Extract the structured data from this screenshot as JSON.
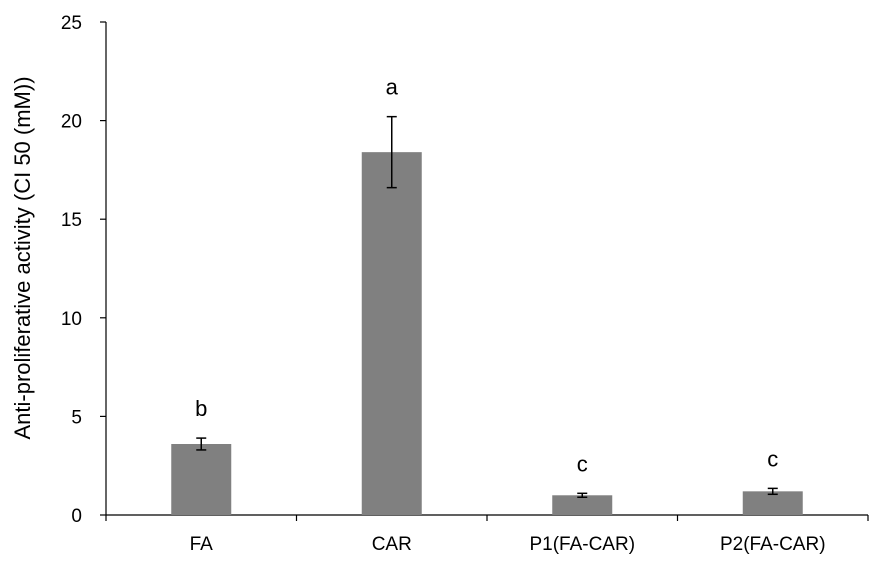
{
  "chart_data": {
    "type": "bar",
    "title": "",
    "xlabel": "",
    "ylabel": "Anti-proliferative activity (CI 50 (mM))",
    "categories": [
      "FA",
      "CAR",
      "P1(FA-CAR)",
      "P2(FA-CAR)"
    ],
    "values": [
      3.6,
      18.4,
      1.0,
      1.2
    ],
    "errors": [
      0.3,
      1.8,
      0.1,
      0.15
    ],
    "significance_labels": [
      "b",
      "a",
      "c",
      "c"
    ],
    "ylim": [
      0,
      25
    ],
    "yticks": [
      0,
      5,
      10,
      15,
      20,
      25
    ],
    "bar_color": "#808080",
    "grid": false,
    "legend": "none"
  }
}
